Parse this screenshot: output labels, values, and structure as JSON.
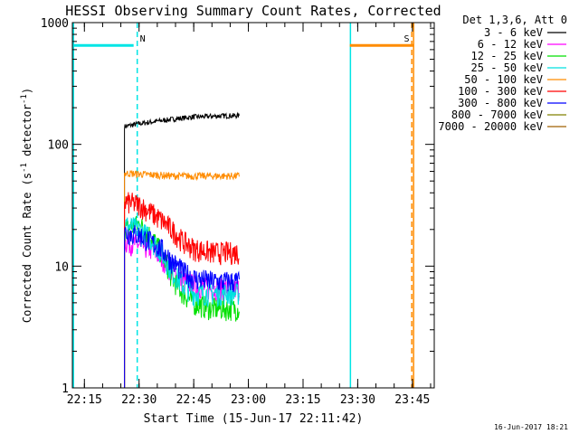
{
  "chart_data": {
    "type": "line",
    "title": "HESSI Observing Summary Count Rates, Corrected",
    "xlabel": "Start Time (15-Jun-17 22:11:42)",
    "ylabel_main": "Corrected Count Rate (s",
    "ylabel_sup1": "-1",
    "ylabel_mid": " detector",
    "ylabel_sup2": "-1",
    "ylabel_end": ")",
    "y_scale": "log",
    "ylim": [
      1,
      1000
    ],
    "y_ticks": [
      {
        "value": 1,
        "label": "1"
      },
      {
        "value": 10,
        "label": "10"
      },
      {
        "value": 100,
        "label": "100"
      },
      {
        "value": 1000,
        "label": "1000"
      }
    ],
    "xlim": [
      "22:11:42",
      "23:51:00"
    ],
    "x_ticks": [
      {
        "value": "22:15",
        "label": "22:15"
      },
      {
        "value": "22:30",
        "label": "22:30"
      },
      {
        "value": "22:45",
        "label": "22:45"
      },
      {
        "value": "23:00",
        "label": "23:00"
      },
      {
        "value": "23:15",
        "label": "23:15"
      },
      {
        "value": "23:30",
        "label": "23:30"
      },
      {
        "value": "23:45",
        "label": "23:45"
      }
    ],
    "legend_title": "Det 1,3,6, Att 0",
    "legend_position": "right",
    "series": [
      {
        "name": "3 - 6 keV",
        "color": "#000000",
        "x": [
          "22:26:00",
          "22:30:00",
          "22:35:00",
          "22:40:00",
          "22:45:00",
          "22:50:00",
          "22:55:00",
          "22:57:30"
        ],
        "values": [
          140,
          148,
          155,
          162,
          168,
          170,
          172,
          172
        ]
      },
      {
        "name": "6 - 12 keV",
        "color": "#ff00ff",
        "x": [
          "22:26:00",
          "22:30:00",
          "22:33:00",
          "22:36:00",
          "22:39:00",
          "22:42:00",
          "22:45:00",
          "22:50:00",
          "22:55:00",
          "22:57:30"
        ],
        "values": [
          16,
          15,
          14,
          12,
          9,
          7.5,
          7,
          6.5,
          6.5,
          6.5
        ]
      },
      {
        "name": "12 - 25 keV",
        "color": "#00e000",
        "x": [
          "22:26:00",
          "22:30:00",
          "22:33:00",
          "22:36:00",
          "22:39:00",
          "22:42:00",
          "22:45:00",
          "22:50:00",
          "22:55:00",
          "22:57:30"
        ],
        "values": [
          20,
          22,
          18,
          13,
          8,
          6,
          5,
          4.5,
          4.5,
          4.5
        ]
      },
      {
        "name": "25 - 50 keV",
        "color": "#00e0e0",
        "x": [
          "22:26:00",
          "22:30:00",
          "22:33:00",
          "22:36:00",
          "22:39:00",
          "22:42:00",
          "22:45:00",
          "22:50:00",
          "22:55:00",
          "22:57:30"
        ],
        "values": [
          22,
          20,
          17,
          13,
          9,
          7,
          6,
          6,
          6,
          6
        ]
      },
      {
        "name": "50 - 100 keV",
        "color": "#ff8c00",
        "x": [
          "22:26:00",
          "22:30:00",
          "22:35:00",
          "22:40:00",
          "22:45:00",
          "22:50:00",
          "22:55:00",
          "22:57:30"
        ],
        "values": [
          58,
          57,
          56,
          55,
          55,
          55,
          55,
          55
        ]
      },
      {
        "name": "100 - 300 keV",
        "color": "#ff0000",
        "x": [
          "22:26:00",
          "22:30:00",
          "22:33:00",
          "22:36:00",
          "22:39:00",
          "22:42:00",
          "22:45:00",
          "22:50:00",
          "22:55:00",
          "22:57:30"
        ],
        "values": [
          34,
          32,
          28,
          24,
          20,
          16,
          14,
          13,
          13,
          13
        ]
      },
      {
        "name": "300 - 800 keV",
        "color": "#0000ff",
        "x": [
          "22:26:00",
          "22:30:00",
          "22:33:00",
          "22:36:00",
          "22:39:00",
          "22:42:00",
          "22:45:00",
          "22:50:00",
          "22:55:00",
          "22:57:30"
        ],
        "values": [
          19,
          18,
          16,
          14,
          11,
          9,
          8,
          7.5,
          7.5,
          7.5
        ]
      },
      {
        "name": "800 - 7000 keV",
        "color": "#808000",
        "x": [],
        "values": []
      },
      {
        "name": "7000 - 20000 keV",
        "color": "#a06000",
        "x": [],
        "values": []
      }
    ],
    "bars": [
      {
        "label": "N",
        "color": "#00e5e5",
        "x_start": "22:11:42",
        "x_end": "22:28:30",
        "value": 650
      },
      {
        "label": "S",
        "color": "#ff8c00",
        "x_start": "23:27:50",
        "x_end": "23:45:10",
        "value": 650
      }
    ],
    "vertical_lines": [
      {
        "x": "22:12:00",
        "color": "#00e5e5",
        "style": "solid"
      },
      {
        "x": "22:29:30",
        "color": "#00e5e5",
        "style": "dashed"
      },
      {
        "x": "23:28:00",
        "color": "#00e5e5",
        "style": "solid"
      },
      {
        "x": "23:44:50",
        "color": "#ff8c00",
        "style": "dashed"
      },
      {
        "x": "23:45:20",
        "color": "#ff8c00",
        "style": "solid"
      }
    ],
    "footer_date": "16-Jun-2017 18:21"
  }
}
